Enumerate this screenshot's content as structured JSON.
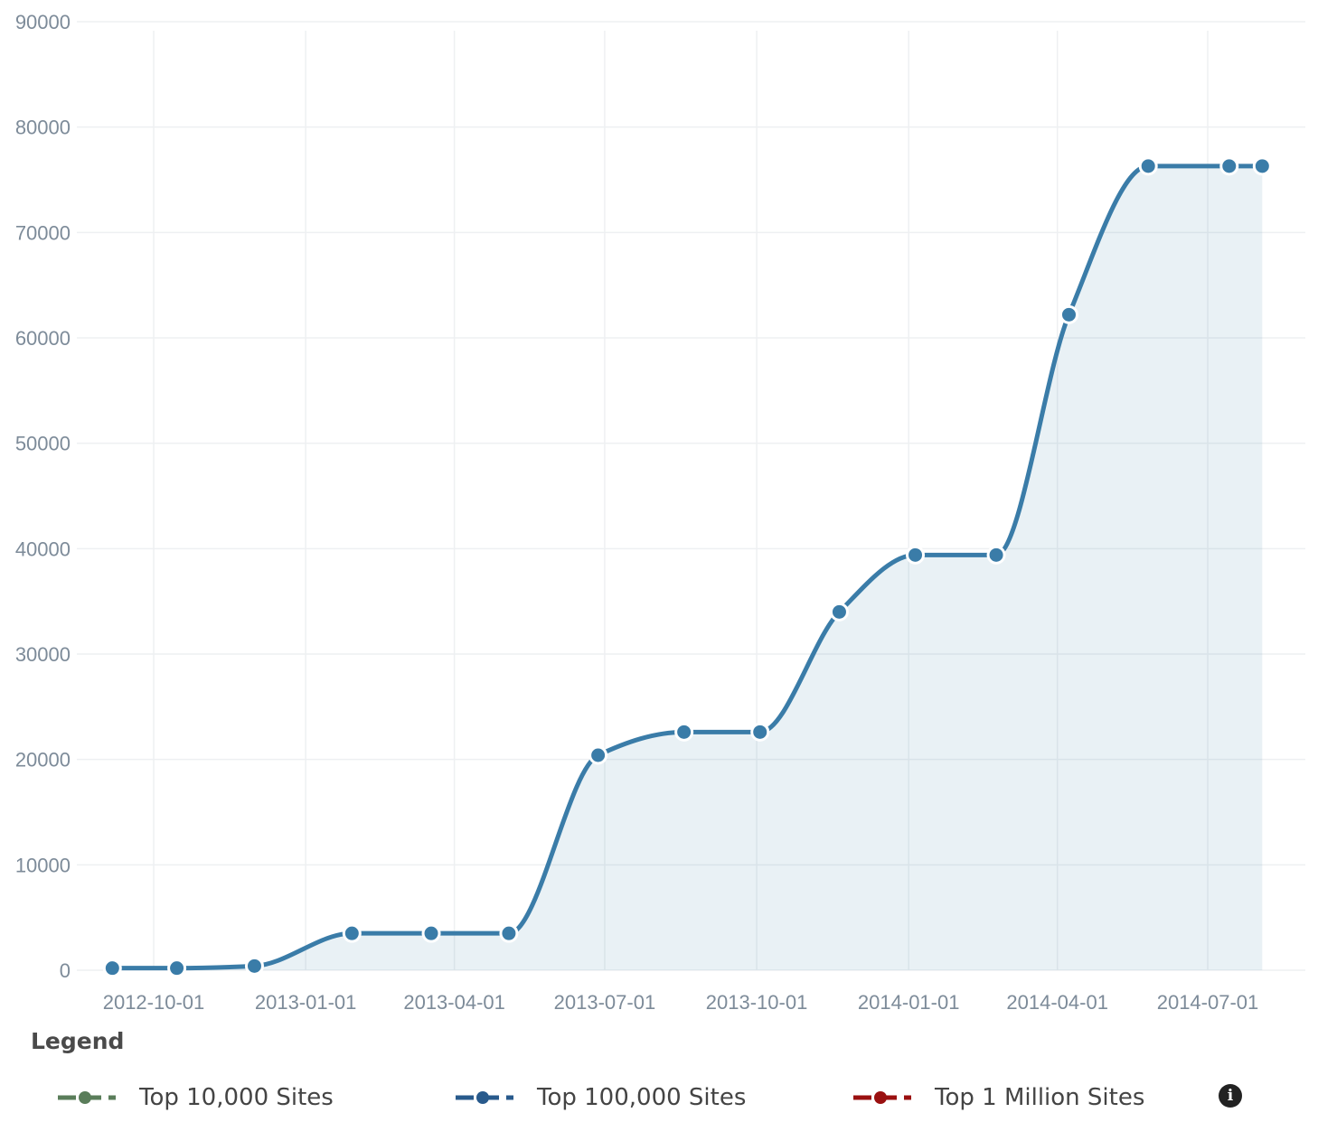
{
  "chart_data": {
    "type": "area",
    "title": "",
    "xlabel": "",
    "ylabel": "",
    "ylim": [
      0,
      90000
    ],
    "yticks": [
      0,
      10000,
      20000,
      30000,
      40000,
      50000,
      60000,
      70000,
      80000,
      90000
    ],
    "xticks": [
      "2012-10-01",
      "2013-01-01",
      "2013-04-01",
      "2013-07-01",
      "2013-10-01",
      "2014-01-01",
      "2014-04-01",
      "2014-07-01"
    ],
    "grid": true,
    "legend_position": "bottom",
    "series": [
      {
        "name": "Top 100,000 Sites",
        "color": "#3a7ca8",
        "points": [
          {
            "x": "2012-09-06",
            "y": 200
          },
          {
            "x": "2012-10-15",
            "y": 200
          },
          {
            "x": "2012-12-01",
            "y": 400
          },
          {
            "x": "2013-01-29",
            "y": 3500
          },
          {
            "x": "2013-03-18",
            "y": 3500
          },
          {
            "x": "2013-05-04",
            "y": 3500
          },
          {
            "x": "2013-06-27",
            "y": 20400
          },
          {
            "x": "2013-08-18",
            "y": 22600
          },
          {
            "x": "2013-10-03",
            "y": 22600
          },
          {
            "x": "2013-11-20",
            "y": 34000
          },
          {
            "x": "2014-01-05",
            "y": 39400
          },
          {
            "x": "2014-02-23",
            "y": 39400
          },
          {
            "x": "2014-04-08",
            "y": 62200
          },
          {
            "x": "2014-05-26",
            "y": 76300
          },
          {
            "x": "2014-07-14",
            "y": 76300
          },
          {
            "x": "2014-08-03",
            "y": 76300
          }
        ]
      }
    ]
  },
  "legend": {
    "title": "Legend",
    "items": [
      {
        "label": "Top 10,000 Sites",
        "color": "#5a7d5a"
      },
      {
        "label": "Top 100,000 Sites",
        "color": "#285a8c"
      },
      {
        "label": "Top 1 Million Sites",
        "color": "#9a1010"
      }
    ],
    "info_icon": "info-icon"
  }
}
